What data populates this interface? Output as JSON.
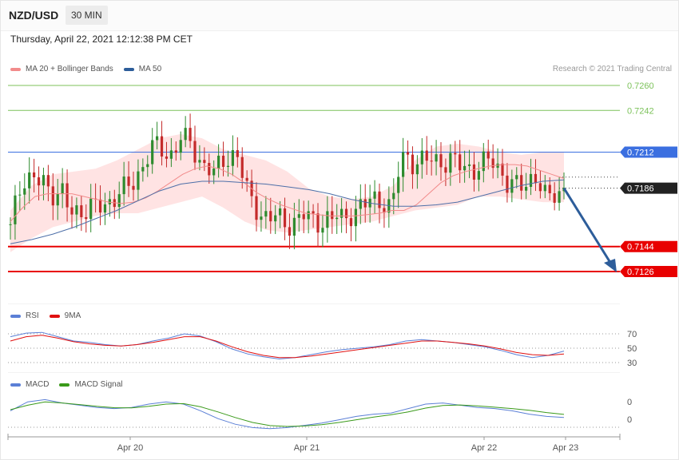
{
  "header": {
    "symbol": "NZD/USD",
    "timeframe": "30 MIN",
    "datetime": "Thursday, April 22, 2021 12:12:38 PM CET"
  },
  "legend_main": [
    {
      "label": "MA 20 + Bollinger Bands",
      "color": "#f28b8b"
    },
    {
      "label": "MA 50",
      "color": "#2d5d9a"
    }
  ],
  "legend_rsi": [
    {
      "label": "RSI",
      "color": "#5b7fd6"
    },
    {
      "label": "9MA",
      "color": "#e01010"
    }
  ],
  "legend_macd": [
    {
      "label": "MACD",
      "color": "#5b7fd6"
    },
    {
      "label": "MACD Signal",
      "color": "#3a9a1a"
    }
  ],
  "credit": "Research © 2021 Trading Central",
  "colors": {
    "up": "#2e8b2e",
    "down": "#c42a2a",
    "band": "#ffdede",
    "resistance_far": "#7cc25a",
    "resistance": "#3b6fe0",
    "support": "#e80000",
    "last": "#222222",
    "arrow": "#2d5d9a"
  },
  "chart_data": [
    {
      "type": "candlestick",
      "instrument": "NZD/USD",
      "interval": "30 MIN",
      "x_ticks": [
        "Apr 20",
        "Apr 21",
        "Apr 22",
        "Apr 23"
      ],
      "ylim": [
        0.7094,
        0.7278
      ],
      "levels": [
        {
          "value": 0.726,
          "label": "0.7260",
          "kind": "resistance-far"
        },
        {
          "value": 0.7242,
          "label": "0.7242",
          "kind": "resistance-far"
        },
        {
          "value": 0.7212,
          "label": "0.7212",
          "kind": "resistance"
        },
        {
          "value": 0.7186,
          "label": "0.7186",
          "kind": "last"
        },
        {
          "value": 0.7144,
          "label": "0.7144",
          "kind": "support"
        },
        {
          "value": 0.7126,
          "label": "0.7126",
          "kind": "support"
        }
      ],
      "forecast_arrow": {
        "from": 0.7186,
        "to": 0.7126
      },
      "close_path": [
        0.716,
        0.7182,
        0.7192,
        0.7188,
        0.719,
        0.7192,
        0.7194,
        0.7186,
        0.7178,
        0.7182,
        0.7174,
        0.717,
        0.7172,
        0.7168,
        0.717,
        0.7172,
        0.7174,
        0.7176,
        0.7178,
        0.718,
        0.7184,
        0.7188,
        0.7192,
        0.72,
        0.7206,
        0.7214,
        0.7216,
        0.7214,
        0.721,
        0.7212,
        0.7222,
        0.722,
        0.7218,
        0.721,
        0.7204,
        0.72,
        0.7196,
        0.7202,
        0.7208,
        0.721,
        0.7212,
        0.7196,
        0.7182,
        0.7175,
        0.717,
        0.7166,
        0.7164,
        0.7165,
        0.7163,
        0.716,
        0.7162,
        0.7164,
        0.7166,
        0.7164,
        0.7163,
        0.7162,
        0.7164,
        0.7163,
        0.7166,
        0.7164,
        0.7168,
        0.717,
        0.7172,
        0.7174,
        0.7178,
        0.718,
        0.7176,
        0.7172,
        0.718,
        0.7204,
        0.7212,
        0.7206,
        0.7204,
        0.7205,
        0.7206,
        0.7207,
        0.7206,
        0.7205,
        0.7206,
        0.7203,
        0.7201,
        0.7202,
        0.72,
        0.7201,
        0.7204,
        0.7206,
        0.7203,
        0.7198,
        0.719,
        0.7188,
        0.7186,
        0.7188,
        0.7194,
        0.7195,
        0.7186,
        0.7176,
        0.718,
        0.7184,
        0.7186
      ],
      "ma20_path": [
        0.7162,
        0.7172,
        0.718,
        0.7182,
        0.7182,
        0.7182,
        0.718,
        0.7178,
        0.7176,
        0.7175,
        0.7176,
        0.7179,
        0.7184,
        0.719,
        0.7196,
        0.72,
        0.7202,
        0.72,
        0.7196,
        0.719,
        0.7183,
        0.7178,
        0.7174,
        0.7171,
        0.7168,
        0.7167,
        0.7166,
        0.7166,
        0.7166,
        0.7167,
        0.7168,
        0.717,
        0.717,
        0.7174,
        0.7182,
        0.719,
        0.7195,
        0.7198,
        0.72,
        0.7202,
        0.7203,
        0.7203,
        0.7202,
        0.7199,
        0.7196,
        0.7193
      ],
      "ma50_path": [
        0.7146,
        0.7149,
        0.7153,
        0.7158,
        0.7164,
        0.717,
        0.7177,
        0.7184,
        0.7189,
        0.7191,
        0.7191,
        0.719,
        0.7189,
        0.7187,
        0.7185,
        0.7182,
        0.7178,
        0.7175,
        0.7173,
        0.7173,
        0.7174,
        0.7176,
        0.718,
        0.7184,
        0.7188,
        0.7191,
        0.7192
      ],
      "bb_upper": [
        0.717,
        0.7188,
        0.7196,
        0.7198,
        0.72,
        0.7206,
        0.7214,
        0.7222,
        0.7225,
        0.7222,
        0.7214,
        0.721,
        0.7206,
        0.7198,
        0.7186,
        0.718,
        0.7178,
        0.718,
        0.7188,
        0.7206,
        0.7216,
        0.7218,
        0.7216,
        0.7212,
        0.721,
        0.7212,
        0.7212
      ],
      "bb_lower": [
        0.714,
        0.715,
        0.7158,
        0.7162,
        0.7166,
        0.7168,
        0.7168,
        0.7172,
        0.7176,
        0.718,
        0.7172,
        0.7162,
        0.7156,
        0.7154,
        0.7156,
        0.7158,
        0.716,
        0.7162,
        0.7166,
        0.717,
        0.7172,
        0.7174,
        0.718,
        0.718,
        0.7178,
        0.7176,
        0.7176
      ]
    },
    {
      "type": "line",
      "title": "RSI",
      "y_ticks": [
        70,
        50,
        30
      ],
      "ylim": [
        20,
        80
      ],
      "series": [
        {
          "name": "RSI",
          "values": [
            66,
            71,
            72,
            66,
            60,
            58,
            55,
            53,
            55,
            60,
            64,
            70,
            67,
            59,
            49,
            42,
            38,
            35,
            37,
            41,
            45,
            48,
            50,
            52,
            55,
            60,
            62,
            60,
            58,
            55,
            52,
            47,
            41,
            37,
            40,
            46
          ]
        },
        {
          "name": "9MA",
          "values": [
            60,
            66,
            68,
            64,
            59,
            56,
            54,
            53,
            55,
            58,
            62,
            66,
            66,
            60,
            52,
            45,
            40,
            37,
            37,
            39,
            42,
            45,
            48,
            51,
            54,
            57,
            60,
            60,
            58,
            56,
            53,
            49,
            44,
            41,
            40,
            42
          ]
        }
      ]
    },
    {
      "type": "line",
      "title": "MACD",
      "y_ticks": [
        0,
        0
      ],
      "series": [
        {
          "name": "MACD",
          "values": [
            0.2,
            0.6,
            0.7,
            0.55,
            0.45,
            0.35,
            0.3,
            0.35,
            0.5,
            0.6,
            0.5,
            0.2,
            -0.15,
            -0.4,
            -0.55,
            -0.6,
            -0.55,
            -0.45,
            -0.35,
            -0.2,
            -0.05,
            0.05,
            0.1,
            0.3,
            0.5,
            0.55,
            0.45,
            0.35,
            0.3,
            0.2,
            0.05,
            -0.05,
            -0.1
          ]
        },
        {
          "name": "MACD Signal",
          "values": [
            0.25,
            0.45,
            0.6,
            0.55,
            0.48,
            0.4,
            0.34,
            0.33,
            0.4,
            0.5,
            0.52,
            0.38,
            0.15,
            -0.1,
            -0.32,
            -0.46,
            -0.5,
            -0.48,
            -0.42,
            -0.32,
            -0.2,
            -0.08,
            0.02,
            0.15,
            0.32,
            0.44,
            0.46,
            0.42,
            0.36,
            0.3,
            0.22,
            0.12,
            0.04
          ]
        }
      ]
    }
  ]
}
